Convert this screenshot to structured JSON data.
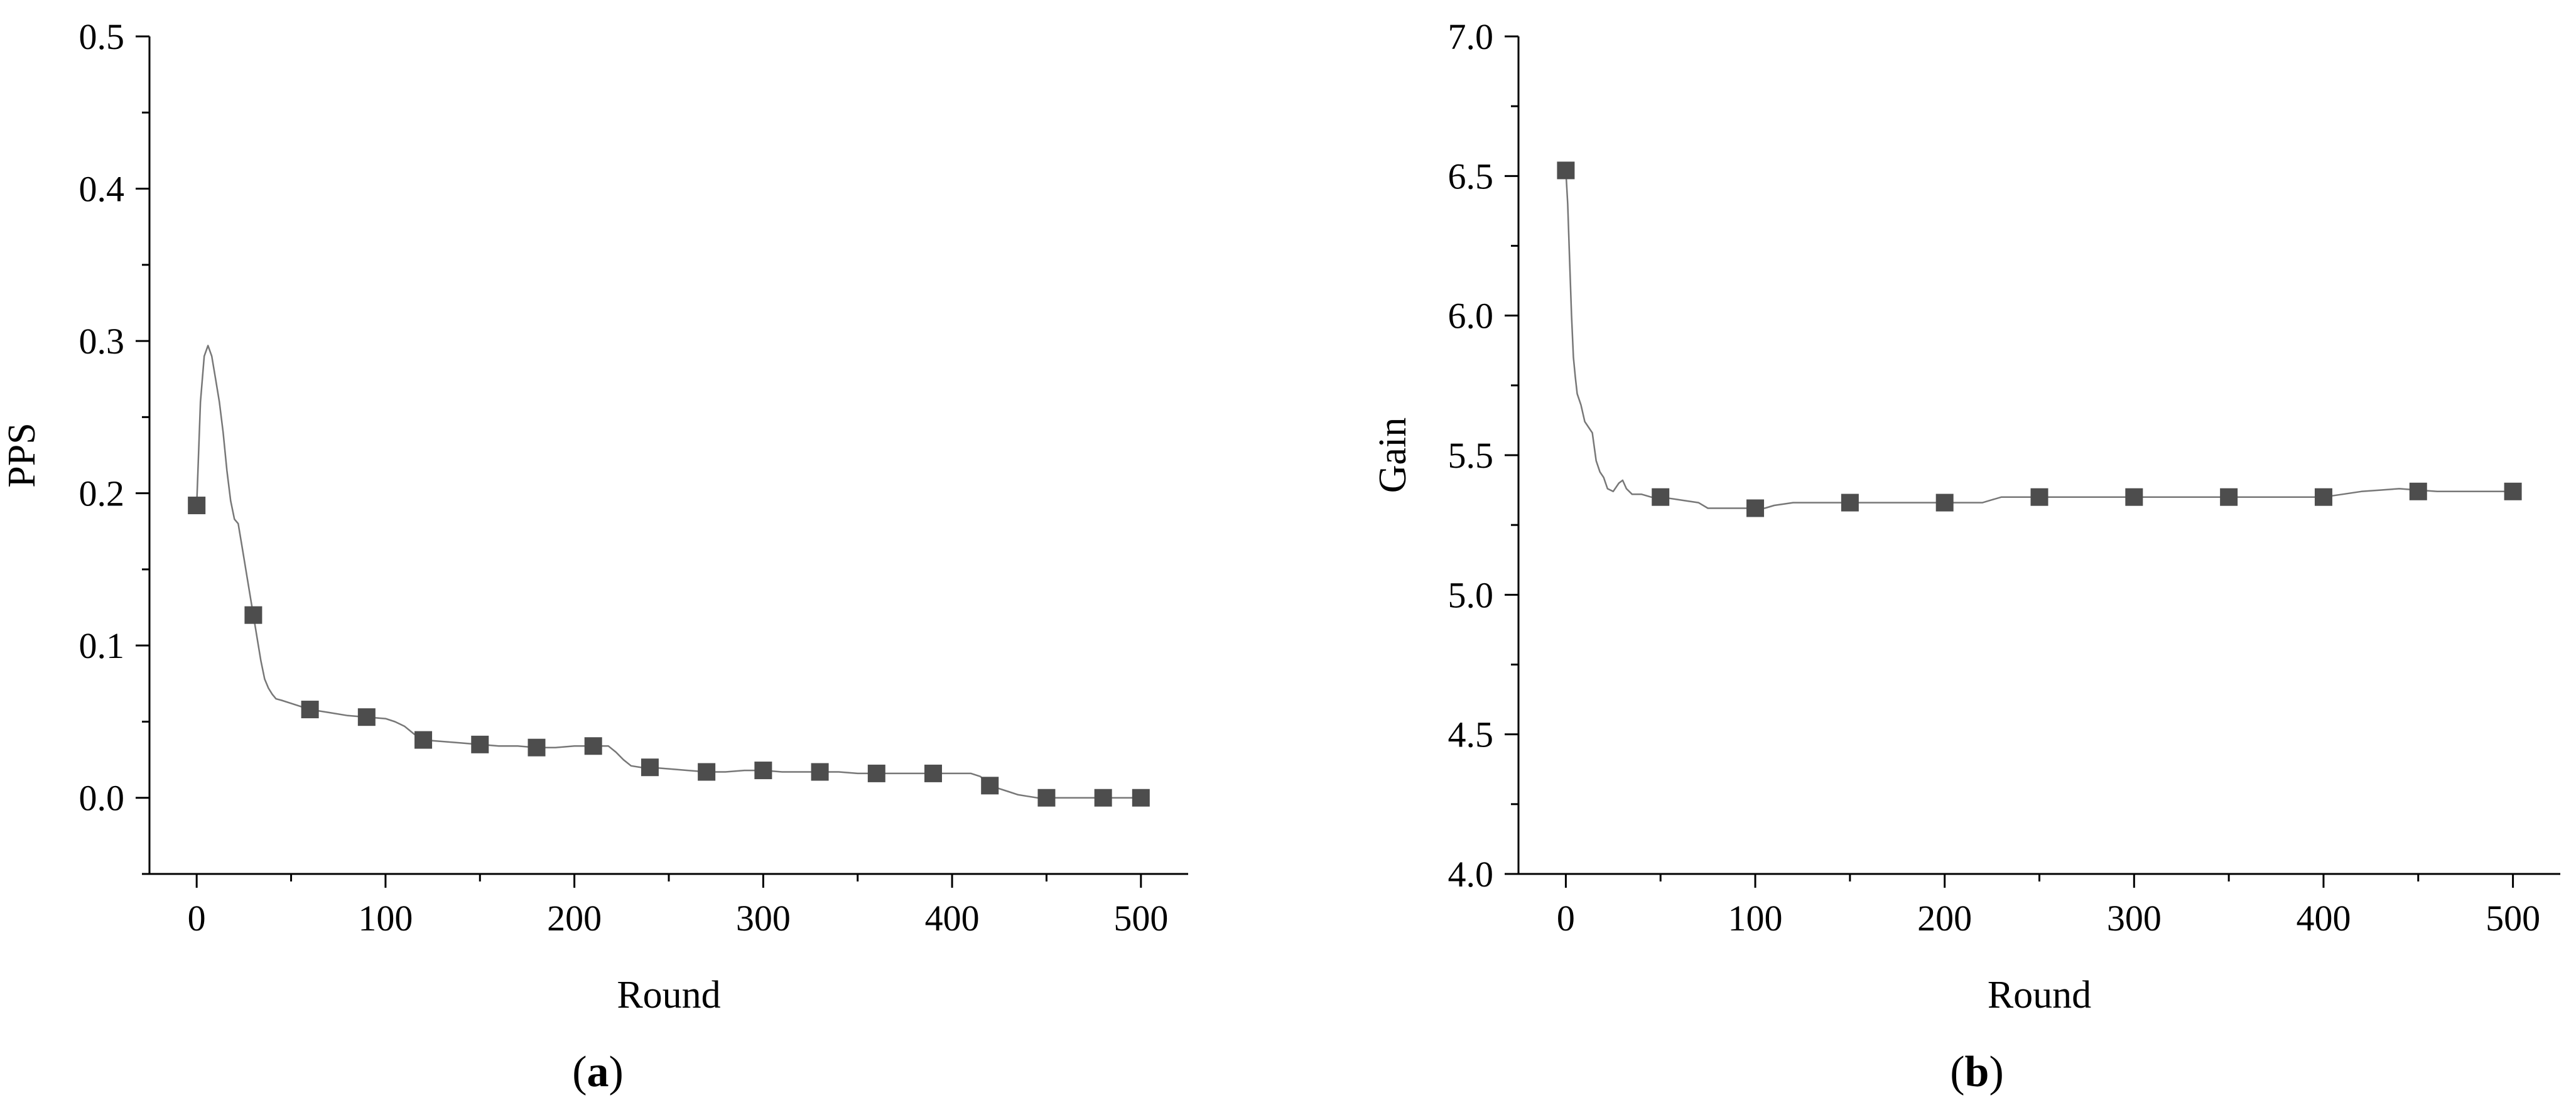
{
  "chart_data": [
    {
      "type": "line",
      "caption_letter": "a",
      "xlabel": "Round",
      "ylabel": "PPS",
      "xlim": [
        -25,
        525
      ],
      "ylim": [
        -0.05,
        0.5
      ],
      "xticks": [
        0,
        100,
        200,
        300,
        400,
        500
      ],
      "xtick_labels": [
        "0",
        "100",
        "200",
        "300",
        "400",
        "500"
      ],
      "yticks": [
        0.0,
        0.1,
        0.2,
        0.3,
        0.4,
        0.5
      ],
      "ytick_labels": [
        "0.0",
        "0.1",
        "0.2",
        "0.3",
        "0.4",
        "0.5"
      ],
      "grid": false,
      "series": [
        {
          "line_color": "#777777",
          "marker_color": "#4d4d4d",
          "marker": "square",
          "line": {
            "x": [
              0,
              2,
              4,
              6,
              8,
              10,
              12,
              14,
              16,
              18,
              20,
              22,
              24,
              26,
              28,
              30,
              32,
              34,
              36,
              38,
              40,
              42,
              45,
              50,
              55,
              60,
              70,
              80,
              90,
              100,
              105,
              110,
              115,
              120,
              130,
              140,
              150,
              160,
              170,
              180,
              190,
              200,
              210,
              218,
              222,
              226,
              230,
              235,
              240,
              250,
              260,
              270,
              280,
              290,
              300,
              310,
              320,
              330,
              340,
              350,
              360,
              370,
              380,
              390,
              400,
              410,
              415,
              420,
              425,
              430,
              435,
              440,
              445,
              450,
              460,
              470,
              480,
              490,
              500
            ],
            "y": [
              0.192,
              0.26,
              0.29,
              0.297,
              0.29,
              0.275,
              0.26,
              0.24,
              0.215,
              0.195,
              0.183,
              0.18,
              0.165,
              0.15,
              0.135,
              0.12,
              0.105,
              0.09,
              0.078,
              0.072,
              0.068,
              0.065,
              0.064,
              0.062,
              0.06,
              0.058,
              0.056,
              0.054,
              0.053,
              0.052,
              0.05,
              0.047,
              0.042,
              0.038,
              0.037,
              0.036,
              0.035,
              0.034,
              0.034,
              0.033,
              0.033,
              0.034,
              0.034,
              0.034,
              0.03,
              0.025,
              0.021,
              0.02,
              0.02,
              0.019,
              0.018,
              0.017,
              0.017,
              0.018,
              0.018,
              0.017,
              0.017,
              0.017,
              0.017,
              0.016,
              0.016,
              0.016,
              0.016,
              0.016,
              0.016,
              0.016,
              0.014,
              0.008,
              0.006,
              0.004,
              0.002,
              0.001,
              0.0,
              0.0,
              0.0,
              0.0,
              0.0,
              0.0,
              0.0
            ]
          },
          "markers": {
            "x": [
              0,
              30,
              60,
              90,
              120,
              150,
              180,
              210,
              240,
              270,
              300,
              330,
              360,
              390,
              420,
              450,
              480,
              500
            ],
            "y": [
              0.192,
              0.12,
              0.058,
              0.053,
              0.038,
              0.035,
              0.033,
              0.034,
              0.02,
              0.017,
              0.018,
              0.017,
              0.016,
              0.016,
              0.008,
              0.0,
              0.0,
              0.0
            ]
          }
        }
      ]
    },
    {
      "type": "line",
      "caption_letter": "b",
      "xlabel": "Round",
      "ylabel": "Gain",
      "xlim": [
        -25,
        525
      ],
      "ylim": [
        4.0,
        7.0
      ],
      "xticks": [
        0,
        100,
        200,
        300,
        400,
        500
      ],
      "xtick_labels": [
        "0",
        "100",
        "200",
        "300",
        "400",
        "500"
      ],
      "yticks": [
        4.0,
        4.5,
        5.0,
        5.5,
        6.0,
        6.5,
        7.0
      ],
      "ytick_labels": [
        "4.0",
        "4.5",
        "5.0",
        "5.5",
        "6.0",
        "6.5",
        "7.0"
      ],
      "grid": false,
      "series": [
        {
          "line_color": "#777777",
          "marker_color": "#4d4d4d",
          "marker": "square",
          "line": {
            "x": [
              0,
              1,
              2,
              3,
              4,
              5,
              6,
              8,
              10,
              12,
              14,
              16,
              18,
              20,
              22,
              25,
              28,
              30,
              32,
              35,
              40,
              45,
              50,
              60,
              70,
              75,
              80,
              90,
              100,
              105,
              110,
              120,
              150,
              180,
              200,
              210,
              220,
              225,
              230,
              240,
              250,
              280,
              300,
              350,
              400,
              410,
              420,
              430,
              440,
              450,
              460,
              480,
              500
            ],
            "y": [
              6.52,
              6.4,
              6.2,
              6.0,
              5.85,
              5.78,
              5.72,
              5.68,
              5.62,
              5.6,
              5.58,
              5.48,
              5.44,
              5.42,
              5.38,
              5.37,
              5.4,
              5.41,
              5.38,
              5.36,
              5.36,
              5.35,
              5.35,
              5.34,
              5.33,
              5.31,
              5.31,
              5.31,
              5.31,
              5.31,
              5.32,
              5.33,
              5.33,
              5.33,
              5.33,
              5.33,
              5.33,
              5.34,
              5.35,
              5.35,
              5.35,
              5.35,
              5.35,
              5.35,
              5.35,
              5.36,
              5.37,
              5.375,
              5.38,
              5.375,
              5.37,
              5.37,
              5.37
            ]
          },
          "markers": {
            "x": [
              0,
              50,
              100,
              150,
              200,
              250,
              300,
              350,
              400,
              450,
              500
            ],
            "y": [
              6.52,
              5.35,
              5.31,
              5.33,
              5.33,
              5.35,
              5.35,
              5.35,
              5.35,
              5.37,
              5.37
            ]
          }
        }
      ]
    }
  ]
}
